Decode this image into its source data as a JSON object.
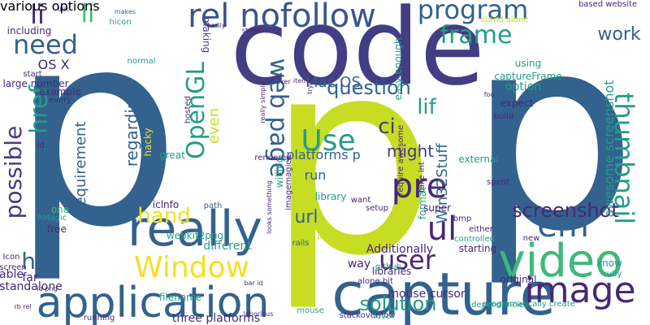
{
  "colors": {
    "background": "#ffffff",
    "navy": "#32628d",
    "lime": "#c7dd24",
    "teal": "#259c8a",
    "purple": "#433d84",
    "green": "#3eb97b",
    "indigo": "#482777",
    "yellow": "#f4e023",
    "blue": "#3a558c",
    "lightgreen": "#7ad151"
  },
  "words": [
    {
      "text": "p",
      "color": "navy",
      "rotate": 0
    },
    {
      "text": "p",
      "color": "lime",
      "rotate": 0
    },
    {
      "text": "p",
      "color": "navy",
      "rotate": 0
    },
    {
      "text": "code",
      "color": "purple",
      "rotate": 0
    },
    {
      "text": "capture",
      "color": "navy",
      "rotate": 0
    },
    {
      "text": "application",
      "color": "navy",
      "rotate": 0
    },
    {
      "text": "really",
      "color": "navy",
      "rotate": 0
    },
    {
      "text": "image",
      "color": "indigo",
      "rotate": 0
    },
    {
      "text": "video",
      "color": "green",
      "rotate": 0
    },
    {
      "text": "Window",
      "color": "yellow",
      "rotate": 0
    },
    {
      "text": "rel nofollow",
      "color": "blue",
      "rotate": 0
    },
    {
      "text": "program",
      "color": "navy",
      "rotate": 0
    },
    {
      "text": "need",
      "color": "navy",
      "rotate": 0
    },
    {
      "text": "li",
      "color": "indigo",
      "rotate": 0
    },
    {
      "text": "li",
      "color": "green",
      "rotate": 0
    },
    {
      "text": "frame",
      "color": "teal",
      "rotate": 0
    },
    {
      "text": "em",
      "color": "navy",
      "rotate": 0
    },
    {
      "text": "pre",
      "color": "indigo",
      "rotate": 0
    },
    {
      "text": "ul",
      "color": "indigo",
      "rotate": 0
    },
    {
      "text": "user",
      "color": "indigo",
      "rotate": 0
    },
    {
      "text": "hand",
      "color": "yellow",
      "rotate": 0
    },
    {
      "text": "Use",
      "color": "teal",
      "rotate": 0
    },
    {
      "text": "web page",
      "color": "navy",
      "rotate": 90
    },
    {
      "text": "href",
      "color": "teal",
      "rotate": -90
    },
    {
      "text": "possible",
      "color": "purple",
      "rotate": -90
    },
    {
      "text": "thumbnail",
      "color": "teal",
      "rotate": 90
    },
    {
      "text": "OpenGL",
      "color": "teal",
      "rotate": -90
    },
    {
      "text": "lif",
      "color": "teal",
      "rotate": 0
    },
    {
      "text": "ci",
      "color": "purple",
      "rotate": 0
    },
    {
      "text": "question",
      "color": "navy",
      "rotate": 0
    },
    {
      "text": "Mac OS",
      "color": "navy",
      "rotate": 0
    },
    {
      "text": "work",
      "color": "navy",
      "rotate": 0
    },
    {
      "text": "screenshot",
      "color": "indigo",
      "rotate": 0
    },
    {
      "text": "awesome screenshot",
      "color": "teal",
      "rotate": -90
    },
    {
      "text": "Win32Stuff",
      "color": "navy",
      "rotate": -90
    },
    {
      "text": "might",
      "color": "purple",
      "rotate": 0
    },
    {
      "text": "url",
      "color": "navy",
      "rotate": 0
    },
    {
      "text": "run",
      "color": "navy",
      "rotate": 0
    },
    {
      "text": "h2",
      "color": "navy",
      "rotate": 0
    },
    {
      "text": "solution",
      "color": "teal",
      "rotate": 0
    },
    {
      "text": "regarding",
      "color": "navy",
      "rotate": -90
    },
    {
      "text": "requirement",
      "color": "navy",
      "rotate": -90
    },
    {
      "text": "platforms p",
      "color": "navy",
      "rotate": 0
    },
    {
      "text": "OS X",
      "color": "indigo",
      "rotate": 0
    },
    {
      "text": "even",
      "color": "lime",
      "rotate": -90
    },
    {
      "text": "making",
      "color": "purple",
      "rotate": 90
    },
    {
      "text": "way",
      "color": "indigo",
      "rotate": 0
    },
    {
      "text": "mouse cursor",
      "color": "indigo",
      "rotate": 0
    },
    {
      "text": "three platforms",
      "color": "indigo",
      "rotate": 0
    },
    {
      "text": "webkit2png",
      "color": "teal",
      "rotate": 0
    },
    {
      "text": "library",
      "color": "teal",
      "rotate": 0
    },
    {
      "text": "iclnfo",
      "color": "indigo",
      "rotate": 0
    },
    {
      "text": "rails",
      "color": "navy",
      "rotate": 0
    },
    {
      "text": "free",
      "color": "indigo",
      "rotate": 0
    },
    {
      "text": "one",
      "color": "green",
      "rotate": 0
    },
    {
      "text": "RMagic",
      "color": "teal",
      "rotate": 0
    },
    {
      "text": "far",
      "color": "indigo",
      "rotate": 0
    },
    {
      "text": "able",
      "color": "indigo",
      "rotate": 0
    },
    {
      "text": "standalone",
      "color": "indigo",
      "rotate": 0
    },
    {
      "text": "screen",
      "color": "indigo",
      "rotate": 0
    },
    {
      "text": "Icon",
      "color": "indigo",
      "rotate": 0
    },
    {
      "text": "filename",
      "color": "teal",
      "rotate": 0
    },
    {
      "text": "running",
      "color": "indigo",
      "rotate": 0
    },
    {
      "text": "different",
      "color": "teal",
      "rotate": 0
    },
    {
      "text": "path",
      "color": "navy",
      "rotate": 0
    },
    {
      "text": "great",
      "color": "teal",
      "rotate": 0
    },
    {
      "text": "hosted",
      "color": "indigo",
      "rotate": -90
    },
    {
      "text": "hacky",
      "color": "yellow",
      "rotate": -90
    },
    {
      "text": "normal",
      "color": "teal",
      "rotate": 0
    },
    {
      "text": "including",
      "color": "indigo",
      "rotate": 0
    },
    {
      "text": "hicon",
      "color": "teal",
      "rotate": 0
    },
    {
      "text": "makes",
      "color": "navy",
      "rotate": 0
    },
    {
      "text": "lilik",
      "color": "indigo",
      "rotate": 0
    },
    {
      "text": "start",
      "color": "indigo",
      "rotate": 0
    },
    {
      "text": "large number",
      "color": "indigo",
      "rotate": 0
    },
    {
      "text": "example",
      "color": "indigo",
      "rotate": 0
    },
    {
      "text": "every",
      "color": "indigo",
      "rotate": 0
    },
    {
      "text": "id",
      "color": "indigo",
      "rotate": 0
    },
    {
      "text": "easily",
      "color": "indigo",
      "rotate": 0
    },
    {
      "text": "maker",
      "color": "indigo",
      "rotate": 0
    },
    {
      "text": "items",
      "color": "indigo",
      "rotate": 0
    },
    {
      "text": "really simple",
      "color": "indigo",
      "rotate": -90
    },
    {
      "text": "rendered",
      "color": "indigo",
      "rotate": 0
    },
    {
      "text": "looks something",
      "color": "indigo",
      "rotate": -90
    },
    {
      "text": "Additionally",
      "color": "indigo",
      "rotate": 0
    },
    {
      "text": "libraries",
      "color": "indigo",
      "rotate": 0
    },
    {
      "text": "alone bit",
      "color": "indigo",
      "rotate": 0
    },
    {
      "text": "github",
      "color": "teal",
      "rotate": 0
    },
    {
      "text": "stackoverflow",
      "color": "indigo",
      "rotate": 0
    },
    {
      "text": "laborious",
      "color": "indigo",
      "rotate": 0
    },
    {
      "text": "level",
      "color": "teal",
      "rotate": 0
    },
    {
      "text": "mouse",
      "color": "teal",
      "rotate": 0
    },
    {
      "text": "setup",
      "color": "indigo",
      "rotate": 0
    },
    {
      "text": "want",
      "color": "indigo",
      "rotate": 0
    },
    {
      "text": "super",
      "color": "indigo",
      "rotate": 0
    },
    {
      "text": "bmp",
      "color": "indigo",
      "rotate": 0
    },
    {
      "text": "either",
      "color": "indigo",
      "rotate": 0
    },
    {
      "text": "controlled",
      "color": "teal",
      "rotate": 0
    },
    {
      "text": "new",
      "color": "indigo",
      "rotate": 0
    },
    {
      "text": "starting",
      "color": "indigo",
      "rotate": 0
    },
    {
      "text": "original",
      "color": "indigo",
      "rotate": 0
    },
    {
      "text": "dependencies",
      "color": "teal",
      "rotate": 0
    },
    {
      "text": "programatically create",
      "color": "teal",
      "rotate": 0
    },
    {
      "text": "know",
      "color": "teal",
      "rotate": 0
    },
    {
      "text": "ruby",
      "color": "teal",
      "rotate": 0
    },
    {
      "text": "external",
      "color": "teal",
      "rotate": 0
    },
    {
      "text": "spent",
      "color": "indigo",
      "rotate": 0
    },
    {
      "text": "build",
      "color": "indigo",
      "rotate": 0
    },
    {
      "text": "expect",
      "color": "indigo",
      "rotate": 0
    },
    {
      "text": "option",
      "color": "teal",
      "rotate": 0
    },
    {
      "text": "captureFrame",
      "color": "teal",
      "rotate": 0
    },
    {
      "text": "foo",
      "color": "indigo",
      "rotate": 0
    },
    {
      "text": "using",
      "color": "teal",
      "rotate": 0
    },
    {
      "text": "based website",
      "color": "indigo",
      "rotate": 0
    },
    {
      "text": "stand alone",
      "color": "lime",
      "rotate": 0
    },
    {
      "text": "take int",
      "color": "indigo",
      "rotate": -90
    },
    {
      "text": "require awesome",
      "color": "indigo",
      "rotate": -90
    },
    {
      "text": "format",
      "color": "teal",
      "rotate": -90
    },
    {
      "text": "willing",
      "color": "teal",
      "rotate": -90
    },
    {
      "text": "imagemagick",
      "color": "indigo",
      "rotate": -90
    },
    {
      "text": "easy enough",
      "color": "teal",
      "rotate": -90
    },
    {
      "text": "trying",
      "color": "indigo",
      "rotate": -90
    },
    {
      "text": "strikes",
      "color": "indigo",
      "rotate": 0
    },
    {
      "text": "bar id",
      "color": "indigo",
      "rotate": 0
    },
    {
      "text": "problem",
      "color": "lime",
      "rotate": 0
    },
    {
      "text": "rb rel",
      "color": "indigo",
      "rotate": 0
    },
    {
      "text": "id png",
      "color": "indigo",
      "rotate": 0
    },
    {
      "text": "various options",
      "color": "indigo",
      "rotate": 0
    }
  ]
}
